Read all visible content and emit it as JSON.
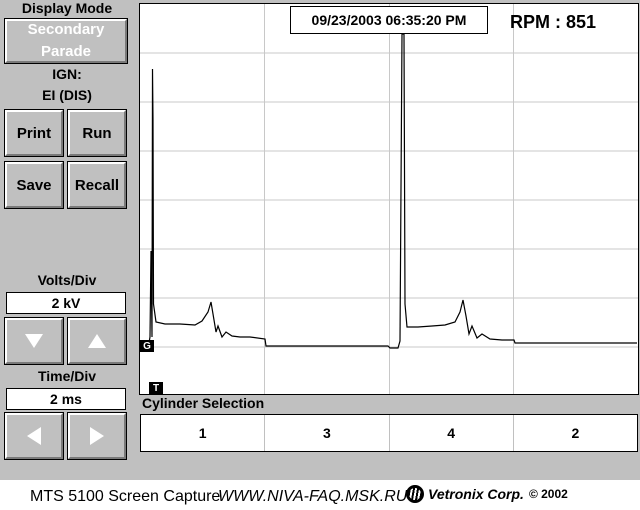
{
  "sidebar": {
    "display_mode_label": "Display Mode",
    "mode_button_line1": "Secondary",
    "mode_button_line2": "Parade",
    "ign_label": "IGN:",
    "ign_value": "EI (DIS)",
    "print_label": "Print",
    "run_label": "Run",
    "save_label": "Save",
    "recall_label": "Recall",
    "volts_div_label": "Volts/Div",
    "volts_div_value": "2 kV",
    "time_div_label": "Time/Div",
    "time_div_value": "2 ms"
  },
  "icons": {
    "volts_down": "down-triangle-icon",
    "volts_up": "up-triangle-icon",
    "time_left": "left-triangle-icon",
    "time_right": "right-triangle-icon"
  },
  "scope": {
    "timestamp": "09/23/2003 06:35:20 PM",
    "rpm": "RPM : 851",
    "ground_marker": "G",
    "trigger_marker": "T"
  },
  "cylinders": {
    "title": "Cylinder Selection",
    "order": [
      "1",
      "3",
      "4",
      "2"
    ]
  },
  "footer": {
    "capture_label": "MTS 5100 Screen Capture",
    "site": "WWW.NIVA-FAQ.MSK.RU",
    "brand": "Vetronix Corp.",
    "copyright": "© 2002"
  },
  "colors": {
    "panel": "#c0c0c0",
    "grid": "#c8c8c8",
    "trace": "#000000"
  }
}
